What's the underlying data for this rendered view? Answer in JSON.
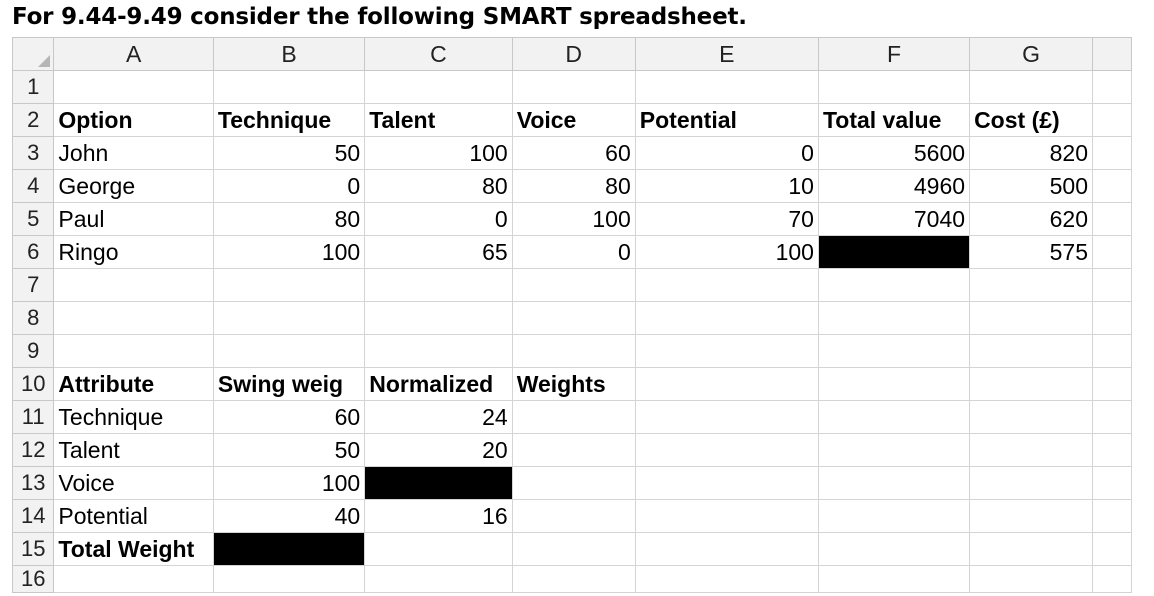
{
  "title": "For 9.44-9.49 consider the following SMART spreadsheet.",
  "columns": [
    "A",
    "B",
    "C",
    "D",
    "E",
    "F",
    "G"
  ],
  "rows": [
    {
      "num": "1",
      "cells": [
        "",
        "",
        "",
        "",
        "",
        "",
        ""
      ]
    },
    {
      "num": "2",
      "cells": [
        "Option",
        "Technique",
        "Talent",
        "Voice",
        "Potential",
        "Total value",
        "Cost (£)"
      ]
    },
    {
      "num": "3",
      "cells": [
        "John",
        "50",
        "100",
        "60",
        "0",
        "5600",
        "820"
      ]
    },
    {
      "num": "4",
      "cells": [
        "George",
        "0",
        "80",
        "80",
        "10",
        "4960",
        "500"
      ]
    },
    {
      "num": "5",
      "cells": [
        "Paul",
        "80",
        "0",
        "100",
        "70",
        "7040",
        "620"
      ]
    },
    {
      "num": "6",
      "cells": [
        "Ringo",
        "100",
        "65",
        "0",
        "100",
        "",
        "575"
      ]
    },
    {
      "num": "7",
      "cells": [
        "",
        "",
        "",
        "",
        "",
        "",
        ""
      ]
    },
    {
      "num": "8",
      "cells": [
        "",
        "",
        "",
        "",
        "",
        "",
        ""
      ]
    },
    {
      "num": "9",
      "cells": [
        "",
        "",
        "",
        "",
        "",
        "",
        ""
      ]
    },
    {
      "num": "10",
      "cells": [
        "Attribute",
        "Swing weig",
        "Normalized",
        "Weights",
        "",
        "",
        ""
      ]
    },
    {
      "num": "11",
      "cells": [
        "Technique",
        "60",
        "24",
        "",
        "",
        "",
        ""
      ]
    },
    {
      "num": "12",
      "cells": [
        "Talent",
        "50",
        "20",
        "",
        "",
        "",
        ""
      ]
    },
    {
      "num": "13",
      "cells": [
        "Voice",
        "100",
        "",
        "",
        "",
        "",
        ""
      ]
    },
    {
      "num": "14",
      "cells": [
        "Potential",
        "40",
        "16",
        "",
        "",
        "",
        ""
      ]
    },
    {
      "num": "15",
      "cells": [
        "Total Weight",
        "",
        "",
        "",
        "",
        "",
        ""
      ]
    },
    {
      "num": "16",
      "cells": [
        "",
        "",
        "",
        "",
        "",
        "",
        ""
      ]
    }
  ],
  "blacked_out_cells": [
    "F6",
    "C13",
    "B15"
  ],
  "colors": {
    "header_bg": "#f2f2f2",
    "grid": "#d4d4d4",
    "redaction": "#000000"
  }
}
